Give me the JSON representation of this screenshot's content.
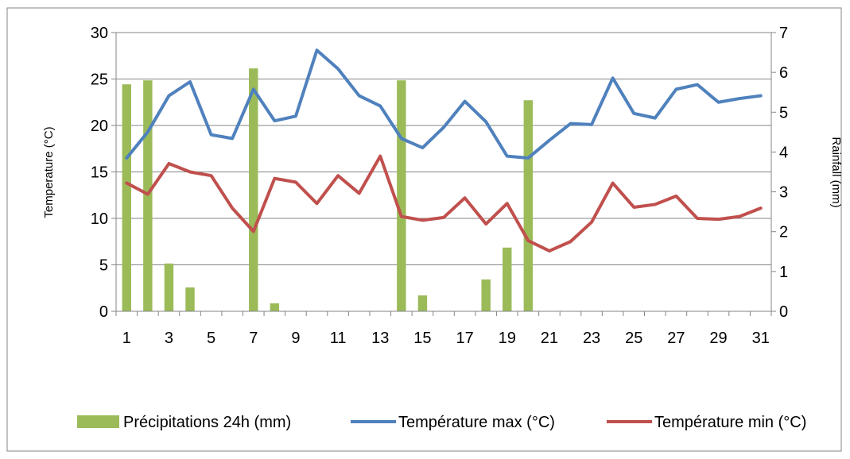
{
  "chart_data": {
    "type": "bar",
    "title": "",
    "xlabel": "",
    "ylabel": "Temperature (°C)",
    "y2label": "Rainfall (mm)",
    "x": [
      1,
      2,
      3,
      4,
      5,
      6,
      7,
      8,
      9,
      10,
      11,
      12,
      13,
      14,
      15,
      16,
      17,
      18,
      19,
      20,
      21,
      22,
      23,
      24,
      25,
      26,
      27,
      28,
      29,
      30,
      31
    ],
    "x_tick_labels": [
      "1",
      "3",
      "5",
      "7",
      "9",
      "11",
      "13",
      "15",
      "17",
      "19",
      "21",
      "23",
      "25",
      "27",
      "29",
      "31"
    ],
    "ylim": [
      0,
      30
    ],
    "y_ticks": [
      "0",
      "5",
      "10",
      "15",
      "20",
      "25",
      "30"
    ],
    "y2lim": [
      0,
      7
    ],
    "y2_ticks": [
      "0",
      "1",
      "2",
      "3",
      "4",
      "5",
      "6",
      "7"
    ],
    "grid": true,
    "legend_position": "bottom",
    "series": [
      {
        "name": "Précipitations 24h (mm)",
        "type": "bar",
        "axis": "right",
        "color": "#9BBB59",
        "values": [
          5.7,
          5.8,
          1.2,
          0.6,
          0,
          0,
          6.1,
          0.2,
          0,
          0,
          0,
          0,
          0,
          5.8,
          0.4,
          0,
          0,
          0.8,
          1.6,
          5.3,
          0,
          0,
          0,
          0,
          0,
          0,
          0,
          0,
          0,
          0,
          0
        ]
      },
      {
        "name": "Température max (°C)",
        "type": "line",
        "axis": "left",
        "color": "#4F81BD",
        "values": [
          16.5,
          19.3,
          23.2,
          24.7,
          19.0,
          18.6,
          23.9,
          20.5,
          21.0,
          28.1,
          26.1,
          23.2,
          22.1,
          18.6,
          17.6,
          19.8,
          22.6,
          20.4,
          16.7,
          16.5,
          18.4,
          20.2,
          20.1,
          25.1,
          21.3,
          20.8,
          23.9,
          24.4,
          22.5,
          22.9,
          23.2
        ]
      },
      {
        "name": "Température min (°C)",
        "type": "line",
        "axis": "left",
        "color": "#C0504D",
        "values": [
          13.8,
          12.6,
          15.9,
          15.0,
          14.6,
          11.1,
          8.6,
          14.3,
          13.9,
          11.6,
          14.6,
          12.7,
          16.7,
          10.2,
          9.8,
          10.1,
          12.2,
          9.4,
          11.6,
          7.6,
          6.5,
          7.5,
          9.6,
          13.8,
          11.2,
          11.5,
          12.4,
          10.0,
          9.9,
          10.2,
          11.1
        ]
      }
    ]
  }
}
